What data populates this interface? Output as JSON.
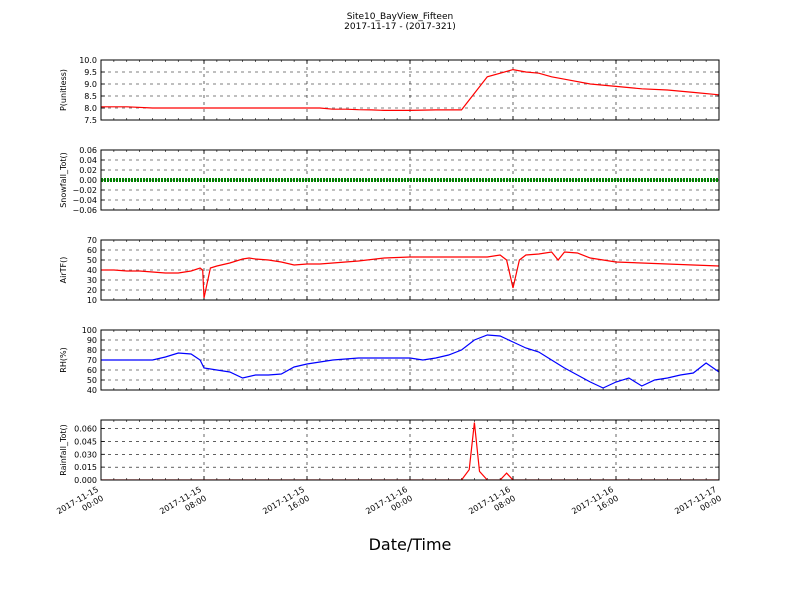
{
  "title": "Site10_BayView_Fifteen",
  "subtitle": "2017-11-17 - (2017-321)",
  "xlabel": "Date/Time",
  "x_ticks": [
    [
      "2017-11-15",
      "00:00"
    ],
    [
      "2017-11-15",
      "08:00"
    ],
    [
      "2017-11-15",
      "16:00"
    ],
    [
      "2017-11-16",
      "00:00"
    ],
    [
      "2017-11-16",
      "08:00"
    ],
    [
      "2017-11-16",
      "16:00"
    ],
    [
      "2017-11-17",
      "00:00"
    ]
  ],
  "chart_data": [
    {
      "type": "line",
      "ylabel": "P(unitless)",
      "ylim": [
        7.5,
        10.0
      ],
      "yticks": [
        7.5,
        8.0,
        8.5,
        9.0,
        9.5,
        10.0
      ],
      "ytick_labels": [
        "7.5",
        "8.0",
        "8.5",
        "9.0",
        "9.5",
        "10.0"
      ],
      "grid": true,
      "color": "#ff0000",
      "series": [
        {
          "x": [
            0,
            2,
            4,
            6,
            8,
            10,
            12,
            14,
            16,
            17,
            18,
            18.5,
            19,
            20,
            21,
            22,
            23,
            24,
            26,
            28,
            30,
            32,
            33,
            34,
            35,
            36,
            38,
            40,
            42,
            44,
            46,
            48
          ],
          "y": [
            8.05,
            8.05,
            8.0,
            8.0,
            8.0,
            8.0,
            8.0,
            8.0,
            8.0,
            8.0,
            7.95,
            7.95,
            7.95,
            7.93,
            7.92,
            7.9,
            7.9,
            7.9,
            7.92,
            7.92,
            9.3,
            9.6,
            9.5,
            9.45,
            9.3,
            9.2,
            9.0,
            8.9,
            8.8,
            8.75,
            8.65,
            8.55
          ]
        }
      ]
    },
    {
      "type": "line",
      "ylabel": "Snowfall_Tot()",
      "ylim": [
        -0.06,
        0.06
      ],
      "yticks": [
        -0.06,
        -0.04,
        -0.02,
        0.0,
        0.02,
        0.04,
        0.06
      ],
      "ytick_labels": [
        "−0.06",
        "−0.04",
        "−0.02",
        "0.00",
        "0.02",
        "0.04",
        "0.06"
      ],
      "grid": true,
      "color": "#008000",
      "series": [
        {
          "x": [
            0,
            48
          ],
          "y": [
            0,
            0
          ]
        }
      ]
    },
    {
      "type": "line",
      "ylabel": "AirTF()",
      "ylim": [
        10,
        70
      ],
      "yticks": [
        10,
        20,
        30,
        40,
        50,
        60,
        70
      ],
      "ytick_labels": [
        "10",
        "20",
        "30",
        "40",
        "50",
        "60",
        "70"
      ],
      "grid": true,
      "color": "#ff0000",
      "series": [
        {
          "x": [
            0,
            1,
            2,
            3,
            4,
            5,
            6,
            7,
            7.7,
            7.9,
            8,
            8.5,
            9,
            10,
            11,
            11.5,
            12,
            13,
            14,
            15,
            16,
            17,
            18,
            19,
            20,
            22,
            24,
            26,
            28,
            29,
            30,
            31,
            31.5,
            32,
            32.5,
            33,
            34,
            35,
            35.5,
            36,
            37,
            38,
            40,
            42,
            44,
            46,
            48
          ],
          "y": [
            40,
            40,
            39,
            39,
            38,
            37,
            37,
            39,
            42,
            40,
            12,
            42,
            44,
            47,
            51,
            52,
            51,
            50,
            48,
            45,
            46,
            46,
            47,
            48,
            49,
            52,
            53,
            53,
            53,
            53,
            53,
            55,
            50,
            22,
            50,
            55,
            56,
            58,
            50,
            58,
            57,
            52,
            48,
            47,
            46,
            45,
            44
          ]
        }
      ]
    },
    {
      "type": "line",
      "ylabel": "RH(%)",
      "ylim": [
        40,
        100
      ],
      "yticks": [
        40,
        50,
        60,
        70,
        80,
        90,
        100
      ],
      "ytick_labels": [
        "40",
        "50",
        "60",
        "70",
        "80",
        "90",
        "100"
      ],
      "grid": true,
      "color": "#0000ff",
      "series": [
        {
          "x": [
            0,
            2,
            4,
            5,
            6,
            7,
            7.7,
            8,
            9,
            10,
            11,
            12,
            13,
            14,
            15,
            16,
            18,
            20,
            22,
            24,
            25,
            26,
            27,
            28,
            29,
            30,
            31,
            32,
            33,
            34,
            35,
            36,
            37,
            38,
            39,
            40,
            41,
            42,
            43,
            44,
            45,
            46,
            47,
            48
          ],
          "y": [
            70,
            70,
            70,
            73,
            77,
            76,
            70,
            62,
            60,
            58,
            52,
            55,
            55,
            56,
            63,
            66,
            70,
            72,
            72,
            72,
            70,
            72,
            75,
            80,
            90,
            95,
            94,
            88,
            82,
            78,
            70,
            62,
            55,
            48,
            42,
            48,
            52,
            44,
            50,
            52,
            55,
            57,
            67,
            58
          ]
        }
      ]
    },
    {
      "type": "line",
      "ylabel": "Rainfall_Tot()",
      "ylim": [
        0.0,
        0.07
      ],
      "yticks": [
        0.0,
        0.015,
        0.03,
        0.045,
        0.06
      ],
      "ytick_labels": [
        "0.000",
        "0.015",
        "0.030",
        "0.045",
        "0.060"
      ],
      "grid": true,
      "color": "#ff0000",
      "series": [
        {
          "x": [
            0,
            28,
            28.6,
            29,
            29.4,
            30,
            31,
            31.5,
            32,
            48
          ],
          "y": [
            0,
            0,
            0.012,
            0.067,
            0.01,
            0,
            0,
            0.008,
            0,
            0
          ]
        }
      ]
    }
  ]
}
